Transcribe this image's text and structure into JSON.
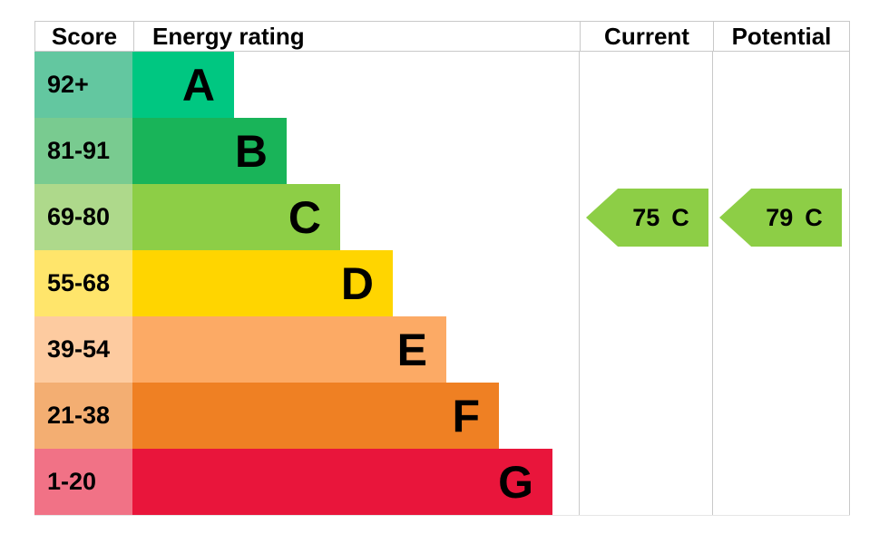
{
  "header": {
    "score": "Score",
    "energy_rating": "Energy rating",
    "current": "Current",
    "potential": "Potential"
  },
  "bands": [
    {
      "letter": "A",
      "score": "92+",
      "color": "#00c781",
      "tint": "#63c7a0"
    },
    {
      "letter": "B",
      "score": "81-91",
      "color": "#19b459",
      "tint": "#79cb90"
    },
    {
      "letter": "C",
      "score": "69-80",
      "color": "#8dce46",
      "tint": "#aed98b"
    },
    {
      "letter": "D",
      "score": "55-68",
      "color": "#ffd500",
      "tint": "#ffe56b"
    },
    {
      "letter": "E",
      "score": "39-54",
      "color": "#fcaa65",
      "tint": "#fdcba0"
    },
    {
      "letter": "F",
      "score": "21-38",
      "color": "#ef8023",
      "tint": "#f3ae72"
    },
    {
      "letter": "G",
      "score": "1-20",
      "color": "#e9153b",
      "tint": "#f17286"
    }
  ],
  "current": {
    "value": "75",
    "band": "C",
    "arrow_color": "#8dce46"
  },
  "potential": {
    "value": "79",
    "band": "C",
    "arrow_color": "#8dce46"
  },
  "border_color": "#c9c9c9",
  "chart_data": {
    "type": "bar",
    "title": "EPC energy rating chart",
    "columns": [
      "Score",
      "Energy rating",
      "Current",
      "Potential"
    ],
    "categories": [
      "A",
      "B",
      "C",
      "D",
      "E",
      "F",
      "G"
    ],
    "score_ranges": [
      "92+",
      "81-91",
      "69-80",
      "55-68",
      "39-54",
      "21-38",
      "1-20"
    ],
    "relative_bar_lengths": [
      1,
      2,
      3,
      4,
      5,
      6,
      7
    ],
    "band_colors": [
      "#00c781",
      "#19b459",
      "#8dce46",
      "#ffd500",
      "#fcaa65",
      "#ef8023",
      "#e9153b"
    ],
    "score_cell_colors": [
      "#63c7a0",
      "#79cb90",
      "#aed98b",
      "#ffe56b",
      "#fdcba0",
      "#f3ae72",
      "#f17286"
    ],
    "current_rating": {
      "score": 75,
      "band": "C"
    },
    "potential_rating": {
      "score": 79,
      "band": "C"
    },
    "legend_position": "none",
    "grid": false
  }
}
